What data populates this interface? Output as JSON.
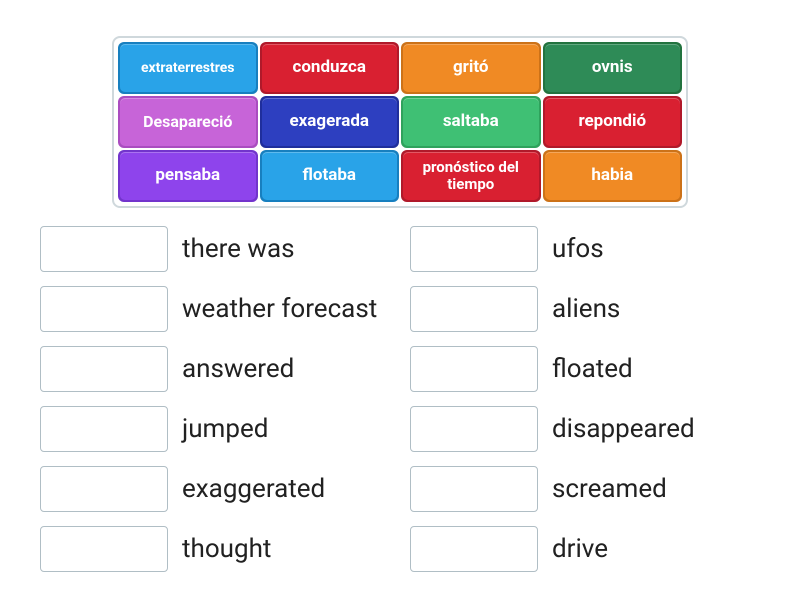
{
  "wordBank": {
    "border_color": "#cfd8dc",
    "tiles": [
      {
        "label": "extraterrestres",
        "fg": "#29a3e8",
        "bg": "#177fbf",
        "fontSize": 14
      },
      {
        "label": "conduzca",
        "fg": "#d92031",
        "bg": "#b0192a",
        "fontSize": 17
      },
      {
        "label": "gritó",
        "fg": "#f08a24",
        "bg": "#cc7218",
        "fontSize": 17
      },
      {
        "label": "ovnis",
        "fg": "#2e8b57",
        "bg": "#22733f",
        "fontSize": 17
      },
      {
        "label": "Desapareció",
        "fg": "#c764d8",
        "bg": "#aa4cc0",
        "fontSize": 16
      },
      {
        "label": "exagerada",
        "fg": "#2d3fc0",
        "bg": "#1f2e9c",
        "fontSize": 17
      },
      {
        "label": "saltaba",
        "fg": "#3fc074",
        "bg": "#2fa25c",
        "fontSize": 17
      },
      {
        "label": "repondió",
        "fg": "#d92031",
        "bg": "#b0192a",
        "fontSize": 17
      },
      {
        "label": "pensaba",
        "fg": "#8e44ec",
        "bg": "#7234cc",
        "fontSize": 17
      },
      {
        "label": "flotaba",
        "fg": "#29a3e8",
        "bg": "#177fbf",
        "fontSize": 17
      },
      {
        "label": "pronóstico del tiempo",
        "fg": "#d92031",
        "bg": "#b0192a",
        "fontSize": 15
      },
      {
        "label": "habia",
        "fg": "#f08a24",
        "bg": "#cc7218",
        "fontSize": 17
      }
    ]
  },
  "answers": {
    "slot_border": "#b0bec5",
    "label_color": "#212121",
    "label_fontsize": 26,
    "left": [
      "there was",
      "weather forecast",
      "answered",
      "jumped",
      "exaggerated",
      "thought"
    ],
    "right": [
      "ufos",
      "aliens",
      "floated",
      "disappeared",
      "screamed",
      "drive"
    ]
  }
}
